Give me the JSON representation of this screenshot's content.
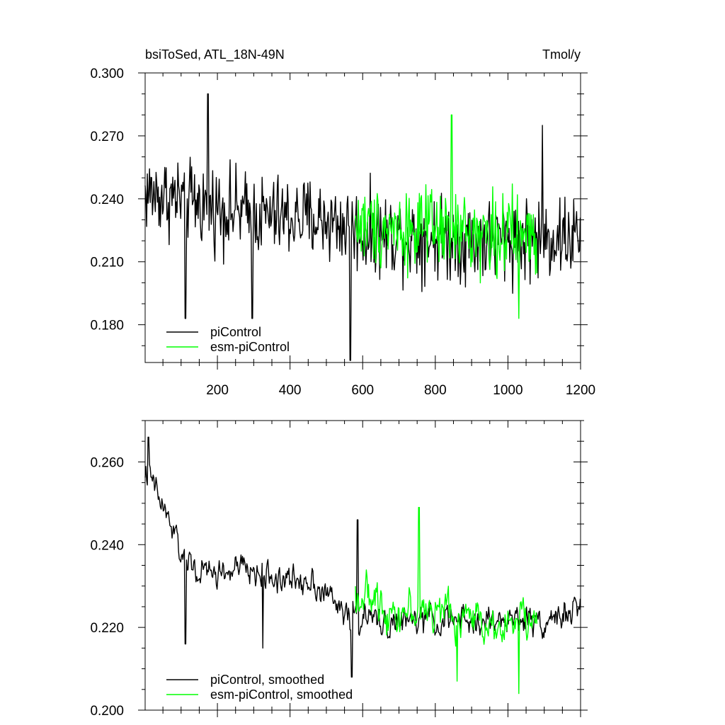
{
  "chart_data": [
    {
      "type": "line",
      "title": "bsiToSed, ATL_18N-49N",
      "units": "Tmol/y",
      "xlim": [
        1,
        1200
      ],
      "ylim": [
        0.162,
        0.3
      ],
      "x_ticks": [
        200,
        400,
        600,
        800,
        1000,
        1200
      ],
      "y_ticks": [
        0.18,
        0.21,
        0.24,
        0.27,
        0.3
      ],
      "y_tick_labels": [
        "0.180",
        "0.210",
        "0.240",
        "0.270",
        "0.300"
      ],
      "legend_position": "bottom-left",
      "grid": false,
      "series": [
        {
          "name": "piControl",
          "color": "#000000",
          "x_range": [
            1,
            1200
          ],
          "mean": 0.228,
          "noise": 0.017,
          "anchors": [
            [
              1,
              0.243
            ],
            [
              100,
              0.24
            ],
            [
              300,
              0.232
            ],
            [
              500,
              0.23
            ],
            [
              600,
              0.224
            ],
            [
              900,
              0.22
            ],
            [
              1200,
              0.222
            ]
          ],
          "peaks": [
            [
              174,
              0.29
            ],
            [
              566,
              0.163
            ],
            [
              112,
              0.183
            ],
            [
              296,
              0.183
            ],
            [
              1095,
              0.275
            ]
          ]
        },
        {
          "name": "esm-piControl",
          "color": "#00ff00",
          "x_range": [
            580,
            1080
          ],
          "mean": 0.225,
          "noise": 0.016,
          "anchors": [
            [
              580,
              0.228
            ],
            [
              800,
              0.225
            ],
            [
              1080,
              0.222
            ]
          ],
          "peaks": [
            [
              845,
              0.28
            ],
            [
              1030,
              0.183
            ]
          ]
        }
      ]
    },
    {
      "type": "line",
      "title": "",
      "xlim": [
        1,
        1200
      ],
      "ylim": [
        0.2,
        0.27
      ],
      "x_ticks": [
        200,
        400,
        600,
        800,
        1000,
        1200
      ],
      "y_ticks": [
        0.2,
        0.22,
        0.24,
        0.26
      ],
      "y_tick_labels": [
        "0.200",
        "0.220",
        "0.240",
        "0.260"
      ],
      "legend_position": "bottom-left",
      "grid": false,
      "series": [
        {
          "name": "piControl, smoothed",
          "color": "#000000",
          "x_range": [
            1,
            1200
          ],
          "noise": 0.006,
          "anchors": [
            [
              1,
              0.258
            ],
            [
              20,
              0.255
            ],
            [
              60,
              0.247
            ],
            [
              100,
              0.238
            ],
            [
              150,
              0.233
            ],
            [
              200,
              0.233
            ],
            [
              260,
              0.234
            ],
            [
              320,
              0.233
            ],
            [
              400,
              0.231
            ],
            [
              460,
              0.232
            ],
            [
              520,
              0.226
            ],
            [
              560,
              0.223
            ],
            [
              600,
              0.222
            ],
            [
              700,
              0.221
            ],
            [
              800,
              0.222
            ],
            [
              900,
              0.221
            ],
            [
              1000,
              0.222
            ],
            [
              1100,
              0.222
            ],
            [
              1200,
              0.224
            ]
          ],
          "peaks": [
            [
              10,
              0.266
            ],
            [
              112,
              0.216
            ],
            [
              325,
              0.215
            ],
            [
              570,
              0.208
            ],
            [
              586,
              0.246
            ]
          ]
        },
        {
          "name": "esm-piControl, smoothed",
          "color": "#00ff00",
          "x_range": [
            580,
            1080
          ],
          "noise": 0.008,
          "anchors": [
            [
              580,
              0.228
            ],
            [
              700,
              0.224
            ],
            [
              800,
              0.224
            ],
            [
              900,
              0.222
            ],
            [
              1000,
              0.221
            ],
            [
              1080,
              0.222
            ]
          ],
          "peaks": [
            [
              755,
              0.249
            ],
            [
              1030,
              0.204
            ],
            [
              860,
              0.207
            ]
          ]
        }
      ]
    }
  ]
}
